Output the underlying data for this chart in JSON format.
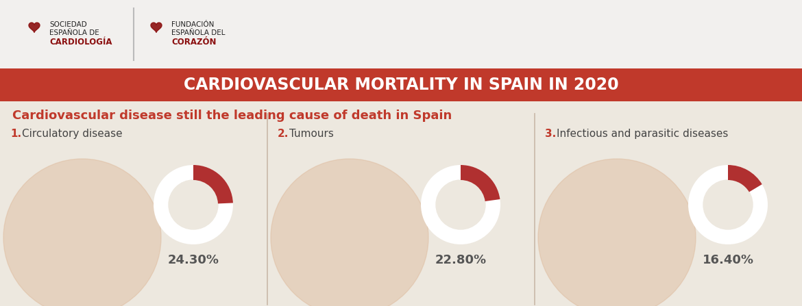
{
  "title": "CARDIOVASCULAR MORTALITY IN SPAIN IN 2020",
  "subtitle": "Cardiovascular disease still the leading cause of death in Spain",
  "header_bg": "#c0392b",
  "header_text_color": "#ffffff",
  "body_bg": "#ede8df",
  "logo_bg": "#f2f0ee",
  "categories": [
    {
      "num": "1.",
      "label": "Circulatory disease",
      "pct": 24.3
    },
    {
      "num": "2.",
      "label": "Tumours",
      "pct": 22.8
    },
    {
      "num": "3.",
      "label": "Infectious and parasitic diseases",
      "pct": 16.4
    }
  ],
  "donut_bg": "#f5f0eb",
  "donut_white": "#ffffff",
  "donut_active": "#b03030",
  "logo_left_line1": "SOCIEDAD",
  "logo_left_line2": "ESPAÑOLA DE",
  "logo_left_line3": "CARDIOLOGÍA",
  "logo_right_line1": "FUNDACIÓN",
  "logo_right_line2": "ESPAÑOLA DEL",
  "logo_right_line3": "CORAZÓN",
  "divider_color": "#bbbbbb",
  "section_divider": "#c8b8a8",
  "subtitle_color": "#c0392b",
  "pct_color": "#555555",
  "label_num_color": "#c0392b",
  "label_text_color": "#444444",
  "illus_bg": "#ddb899",
  "logo_heart_color": "#8b1010"
}
